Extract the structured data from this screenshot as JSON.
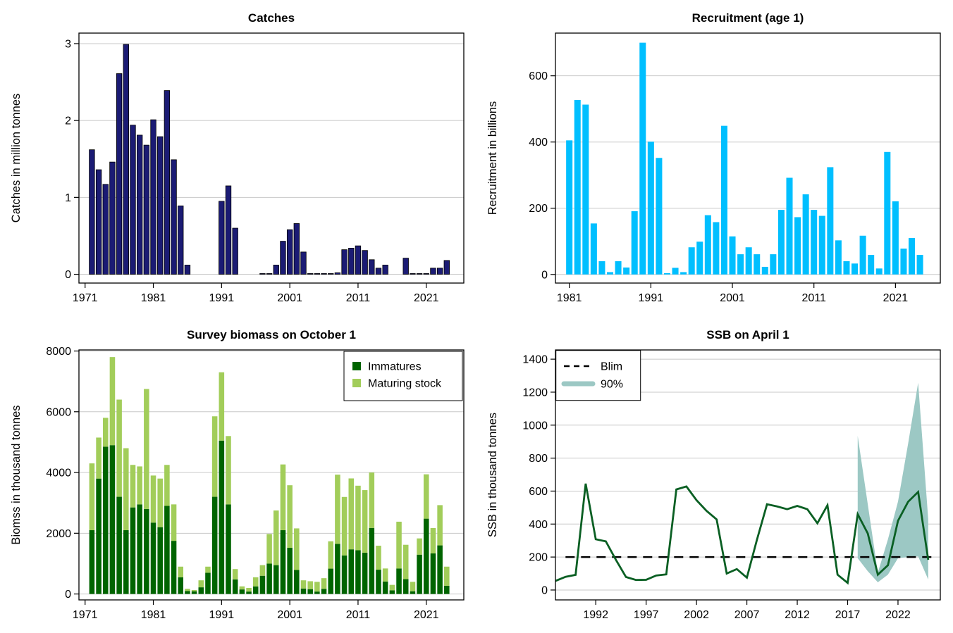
{
  "style": {
    "grid_color": "#c8c8c8",
    "axis_color": "#000000",
    "background": "#ffffff"
  },
  "chart_data": [
    {
      "id": "catches",
      "type": "bar",
      "title": "Catches",
      "xlabel": "",
      "ylabel": "Catches in million tonnes",
      "bar_color": "#1b1b74",
      "bar_border": "#000000",
      "bar_width": 0.78,
      "start_year": 1972,
      "end_year": 2024,
      "values": [
        1.62,
        1.36,
        1.17,
        1.46,
        2.61,
        2.99,
        1.94,
        1.81,
        1.68,
        2.01,
        1.79,
        2.39,
        1.49,
        0.89,
        0.12,
        0,
        0,
        0,
        0,
        0.95,
        1.15,
        0.6,
        0,
        0,
        0,
        0.01,
        0.01,
        0.12,
        0.43,
        0.58,
        0.66,
        0.29,
        0.01,
        0.01,
        0.01,
        0.01,
        0.02,
        0.32,
        0.34,
        0.37,
        0.31,
        0.19,
        0.08,
        0.12,
        0,
        0,
        0.21,
        0.01,
        0.01,
        0.01,
        0.08,
        0.08,
        0.18
      ],
      "xticks": [
        1971,
        1981,
        1991,
        2001,
        2011,
        2021
      ],
      "yticks": [
        0,
        1,
        2,
        3
      ],
      "xlim": [
        1970.1,
        2026.5
      ],
      "ylim": [
        -0.114,
        3.137
      ],
      "grid": true
    },
    {
      "id": "recruitment",
      "type": "bar",
      "title": "Recruitment (age 1)",
      "xlabel": "",
      "ylabel": "Recruitment in billions",
      "bar_color": "#00bfff",
      "bar_border": null,
      "bar_width": 0.78,
      "start_year": 1981,
      "end_year": 2024,
      "values": [
        405,
        527,
        513,
        154,
        40,
        7,
        40,
        21,
        191,
        700,
        401,
        352,
        4,
        20,
        7,
        82,
        99,
        179,
        158,
        449,
        115,
        61,
        82,
        61,
        23,
        61,
        195,
        292,
        173,
        242,
        195,
        177,
        324,
        103,
        40,
        33,
        117,
        59,
        18,
        370,
        221,
        78,
        110,
        59
      ],
      "xticks": [
        1981,
        1991,
        2001,
        2011,
        2021
      ],
      "yticks": [
        0,
        200,
        400,
        600
      ],
      "xlim": [
        1979.3,
        2026.5
      ],
      "ylim": [
        -26,
        729
      ],
      "grid": true
    },
    {
      "id": "biomass",
      "type": "stacked-bar",
      "title": "Survey biomass on October 1",
      "xlabel": "",
      "ylabel": "Biomss in thousand tonnes",
      "bar_width": 0.78,
      "start_year": 1972,
      "end_year": 2024,
      "series": [
        {
          "name": "Immatures",
          "color": "#006400",
          "values": [
            2100,
            3800,
            4850,
            4900,
            3200,
            2100,
            2850,
            2950,
            2800,
            2350,
            2200,
            2900,
            1750,
            550,
            100,
            90,
            220,
            700,
            3200,
            5050,
            2950,
            480,
            150,
            80,
            250,
            600,
            1000,
            950,
            2100,
            1520,
            790,
            180,
            160,
            80,
            170,
            835,
            1650,
            1270,
            1470,
            1440,
            1360,
            2175,
            800,
            410,
            120,
            840,
            490,
            90,
            1295,
            2480,
            1335,
            1600,
            270
          ]
        },
        {
          "name": "Maturing stock",
          "color": "#a2cd5a",
          "values": [
            2200,
            1350,
            950,
            2900,
            3200,
            2700,
            1400,
            1250,
            3950,
            1550,
            1600,
            1350,
            1200,
            350,
            70,
            40,
            230,
            200,
            2650,
            2250,
            2250,
            340,
            100,
            120,
            300,
            350,
            975,
            1800,
            2165,
            2060,
            1370,
            270,
            260,
            320,
            350,
            900,
            2280,
            1925,
            2335,
            2125,
            2060,
            1825,
            790,
            430,
            180,
            1540,
            1130,
            310,
            535,
            1460,
            835,
            1325,
            630
          ]
        }
      ],
      "legend": {
        "position": "topright"
      },
      "xticks": [
        1971,
        1981,
        1991,
        2001,
        2011,
        2021
      ],
      "yticks": [
        0,
        2000,
        4000,
        6000,
        8000
      ],
      "xlim": [
        1970.1,
        2026.5
      ],
      "ylim": [
        -195,
        8035
      ],
      "grid": true
    },
    {
      "id": "ssb",
      "type": "line",
      "title": "SSB on April 1",
      "xlabel": "",
      "ylabel": "SSB in thousand tonnes",
      "line_color": "#0a5f23",
      "line_width": 2.8,
      "start_year": 1988,
      "end_year": 2025,
      "values": [
        55,
        80,
        92,
        645,
        308,
        295,
        183,
        79,
        61,
        62,
        88,
        95,
        610,
        628,
        545,
        480,
        428,
        100,
        127,
        75,
        305,
        520,
        507,
        490,
        510,
        490,
        405,
        514,
        93,
        43,
        460,
        343,
        93,
        150,
        420,
        535,
        595,
        183
      ],
      "blim": {
        "label": "Blim",
        "value": 200,
        "x_start": 1989,
        "x_end": 2025.7,
        "color": "#000000"
      },
      "band": {
        "label": "90%",
        "color": "#9cc8c4",
        "start_year": 2018,
        "upper": [
          935,
          520,
          105,
          307,
          536,
          886,
          1257,
          430
        ],
        "lower": [
          193,
          114,
          47,
          93,
          193,
          200,
          204,
          64
        ]
      },
      "legend": {
        "position": "topleft"
      },
      "xticks": [
        1992,
        1997,
        2002,
        2007,
        2012,
        2017,
        2022
      ],
      "yticks": [
        0,
        200,
        400,
        600,
        800,
        1000,
        1200,
        1400
      ],
      "xlim": [
        1988.0,
        2026.2
      ],
      "ylim": [
        -60,
        1456
      ],
      "grid": true
    }
  ]
}
